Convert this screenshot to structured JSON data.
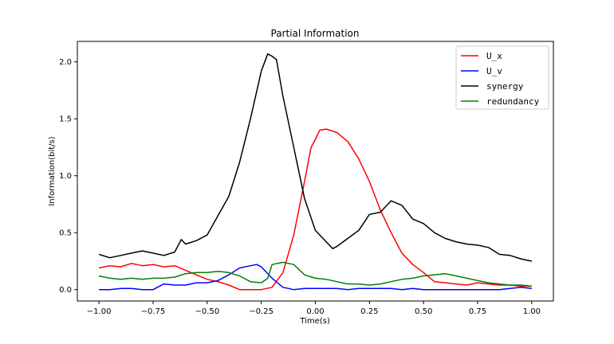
{
  "chart_data": {
    "type": "line",
    "title": "Partial Information",
    "xlabel": "Time(s)",
    "ylabel": "Information(bit/s)",
    "xlim": [
      -1.1,
      1.1
    ],
    "ylim": [
      -0.1,
      2.18
    ],
    "xticks": [
      -1.0,
      -0.75,
      -0.5,
      -0.25,
      0.0,
      0.25,
      0.5,
      0.75,
      1.0
    ],
    "xtick_labels": [
      "−1.00",
      "−0.75",
      "−0.50",
      "−0.25",
      "0.00",
      "0.25",
      "0.50",
      "0.75",
      "1.00"
    ],
    "yticks": [
      0.0,
      0.5,
      1.0,
      1.5,
      2.0
    ],
    "ytick_labels": [
      "0.0",
      "0.5",
      "1.0",
      "1.5",
      "2.0"
    ],
    "grid": false,
    "legend_position": "top-right",
    "series": [
      {
        "name": "U_x",
        "color": "#ff0000",
        "x": [
          -1.0,
          -0.95,
          -0.9,
          -0.85,
          -0.8,
          -0.75,
          -0.7,
          -0.65,
          -0.6,
          -0.55,
          -0.5,
          -0.45,
          -0.4,
          -0.35,
          -0.3,
          -0.25,
          -0.2,
          -0.15,
          -0.1,
          -0.05,
          -0.02,
          0.0,
          0.02,
          0.05,
          0.1,
          0.15,
          0.2,
          0.25,
          0.3,
          0.35,
          0.4,
          0.45,
          0.5,
          0.55,
          0.6,
          0.65,
          0.7,
          0.75,
          0.8,
          0.85,
          0.9,
          0.95,
          1.0
        ],
        "y": [
          0.19,
          0.21,
          0.2,
          0.23,
          0.21,
          0.22,
          0.2,
          0.21,
          0.17,
          0.13,
          0.09,
          0.07,
          0.04,
          0.0,
          0.0,
          0.0,
          0.02,
          0.15,
          0.48,
          0.95,
          1.25,
          1.32,
          1.4,
          1.41,
          1.38,
          1.3,
          1.15,
          0.95,
          0.7,
          0.5,
          0.32,
          0.22,
          0.15,
          0.07,
          0.06,
          0.05,
          0.04,
          0.06,
          0.05,
          0.04,
          0.04,
          0.03,
          0.03
        ]
      },
      {
        "name": "U_v",
        "color": "#0000ff",
        "x": [
          -1.0,
          -0.95,
          -0.9,
          -0.85,
          -0.8,
          -0.75,
          -0.7,
          -0.65,
          -0.6,
          -0.55,
          -0.5,
          -0.45,
          -0.4,
          -0.35,
          -0.3,
          -0.27,
          -0.25,
          -0.2,
          -0.15,
          -0.1,
          -0.05,
          0.0,
          0.05,
          0.1,
          0.15,
          0.2,
          0.25,
          0.3,
          0.35,
          0.4,
          0.45,
          0.5,
          0.55,
          0.6,
          0.65,
          0.7,
          0.75,
          0.8,
          0.85,
          0.9,
          0.95,
          1.0
        ],
        "y": [
          0.0,
          0.0,
          0.01,
          0.01,
          0.0,
          0.0,
          0.05,
          0.04,
          0.04,
          0.06,
          0.06,
          0.08,
          0.13,
          0.19,
          0.21,
          0.22,
          0.2,
          0.1,
          0.02,
          0.0,
          0.01,
          0.01,
          0.01,
          0.01,
          0.0,
          0.01,
          0.01,
          0.01,
          0.01,
          0.0,
          0.01,
          0.0,
          0.0,
          0.0,
          0.0,
          0.0,
          0.0,
          0.0,
          0.0,
          0.01,
          0.02,
          0.01
        ]
      },
      {
        "name": "synergy",
        "color": "#000000",
        "x": [
          -1.0,
          -0.95,
          -0.9,
          -0.85,
          -0.8,
          -0.75,
          -0.7,
          -0.65,
          -0.62,
          -0.6,
          -0.55,
          -0.5,
          -0.45,
          -0.4,
          -0.35,
          -0.3,
          -0.25,
          -0.22,
          -0.2,
          -0.18,
          -0.15,
          -0.1,
          -0.05,
          0.0,
          0.05,
          0.08,
          0.1,
          0.15,
          0.2,
          0.25,
          0.3,
          0.35,
          0.4,
          0.45,
          0.5,
          0.55,
          0.6,
          0.65,
          0.7,
          0.75,
          0.8,
          0.85,
          0.9,
          0.95,
          1.0
        ],
        "y": [
          0.31,
          0.28,
          0.3,
          0.32,
          0.34,
          0.32,
          0.3,
          0.33,
          0.44,
          0.4,
          0.43,
          0.48,
          0.65,
          0.82,
          1.12,
          1.5,
          1.92,
          2.07,
          2.05,
          2.02,
          1.7,
          1.25,
          0.8,
          0.52,
          0.42,
          0.36,
          0.38,
          0.45,
          0.52,
          0.66,
          0.68,
          0.78,
          0.74,
          0.62,
          0.58,
          0.5,
          0.45,
          0.42,
          0.4,
          0.39,
          0.37,
          0.31,
          0.3,
          0.27,
          0.25
        ]
      },
      {
        "name": "redundancy",
        "color": "#008000",
        "x": [
          -1.0,
          -0.95,
          -0.9,
          -0.85,
          -0.8,
          -0.75,
          -0.7,
          -0.65,
          -0.6,
          -0.55,
          -0.5,
          -0.45,
          -0.4,
          -0.35,
          -0.3,
          -0.25,
          -0.22,
          -0.2,
          -0.15,
          -0.1,
          -0.05,
          0.0,
          0.05,
          0.1,
          0.15,
          0.2,
          0.25,
          0.3,
          0.35,
          0.4,
          0.45,
          0.5,
          0.55,
          0.6,
          0.65,
          0.7,
          0.75,
          0.8,
          0.85,
          0.9,
          0.95,
          1.0
        ],
        "y": [
          0.12,
          0.1,
          0.09,
          0.1,
          0.09,
          0.1,
          0.1,
          0.11,
          0.14,
          0.15,
          0.15,
          0.16,
          0.15,
          0.12,
          0.07,
          0.06,
          0.1,
          0.22,
          0.24,
          0.22,
          0.13,
          0.1,
          0.09,
          0.07,
          0.05,
          0.05,
          0.04,
          0.05,
          0.07,
          0.09,
          0.1,
          0.12,
          0.13,
          0.14,
          0.12,
          0.1,
          0.08,
          0.06,
          0.05,
          0.04,
          0.04,
          0.03
        ]
      }
    ]
  }
}
